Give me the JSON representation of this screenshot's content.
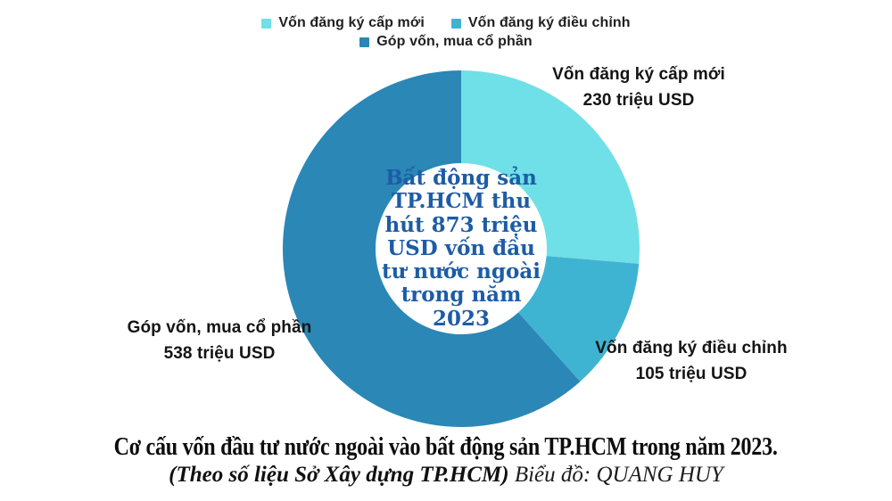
{
  "chart_data": {
    "type": "pie",
    "donut": true,
    "start_angle_deg": 0,
    "clockwise": true,
    "total": 873,
    "slices": [
      {
        "label": "Vốn đăng ký cấp mới",
        "value": 230,
        "value_label": "230 triệu USD",
        "color": "#6FE0E7"
      },
      {
        "label": "Vốn đăng ký điều chỉnh",
        "value": 105,
        "value_label": "105 triệu USD",
        "color": "#3FB4D2"
      },
      {
        "label": "Góp vốn, mua cổ phần",
        "value": 538,
        "value_label": "538 triệu USD",
        "color": "#2A87B6"
      }
    ],
    "center_text": "Bất động sản\nTP.HCM thu\nhút 873 triệu\nUSD vốn đầu\ntư nước ngoài\ntrong năm\n2023",
    "center_text_color": "#1D5CA6",
    "legend_position": "top"
  },
  "caption": {
    "line1": "Cơ cấu vốn đầu tư nước ngoài vào  bất động sản TP.HCM trong năm 2023.",
    "line2_source": "(Theo số liệu Sở Xây dựng TP.HCM)",
    "line2_credit": " Biểu đồ: QUANG HUY"
  }
}
